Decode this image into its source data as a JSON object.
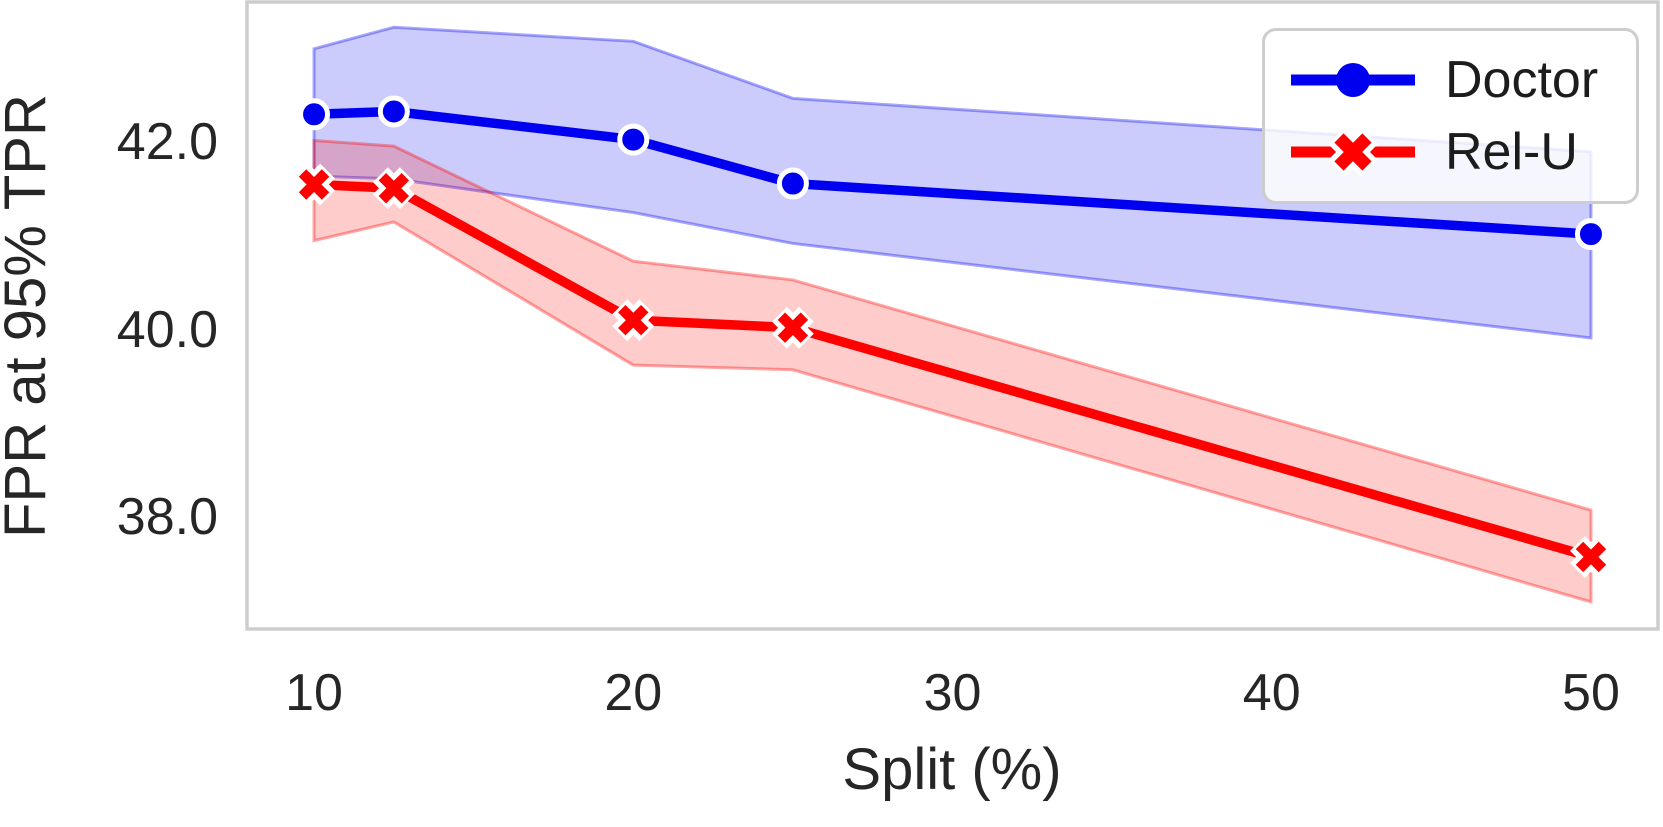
{
  "chart_data": {
    "type": "line",
    "x": [
      10,
      12.5,
      20,
      25,
      50
    ],
    "series": [
      {
        "name": "Doctor",
        "color": "#0000f0",
        "marker": "circle",
        "values": [
          42.3,
          42.33,
          42.03,
          41.56,
          41.02
        ],
        "band_upper": [
          43.0,
          43.23,
          43.08,
          42.47,
          41.9
        ],
        "band_lower": [
          41.64,
          41.61,
          41.25,
          40.92,
          39.91
        ]
      },
      {
        "name": "Rel-U",
        "color": "#ff0000",
        "marker": "x",
        "values": [
          41.55,
          41.51,
          40.1,
          40.02,
          37.57
        ],
        "band_upper": [
          42.02,
          41.96,
          40.73,
          40.53,
          38.07
        ],
        "band_lower": [
          40.95,
          41.15,
          39.62,
          39.57,
          37.09
        ]
      }
    ],
    "title": "",
    "xlabel": "Split (%)",
    "ylabel": "FPR at 95% TPR",
    "x_ticks": [
      10,
      20,
      30,
      40,
      50
    ],
    "x_tick_labels": [
      "10",
      "20",
      "30",
      "40",
      "50"
    ],
    "y_ticks": [
      38.0,
      40.0,
      42.0
    ],
    "y_tick_labels": [
      "38.0",
      "40.0",
      "42.0"
    ],
    "xlim": [
      7.9,
      52.1
    ],
    "ylim": [
      36.8,
      43.5
    ],
    "grid": false,
    "legend_position": "upper right",
    "band_alpha": 0.2,
    "band_edge_alpha": 0.35,
    "border_color": "#cdcdcd",
    "text_color": "#262626"
  }
}
